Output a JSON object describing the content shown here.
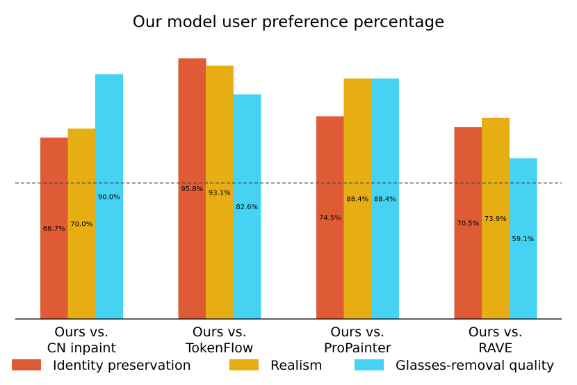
{
  "chart_data": {
    "type": "bar",
    "title": "Our model user preference percentage",
    "categories": [
      [
        "Ours vs.",
        "CN inpaint"
      ],
      [
        "Ours vs.",
        "TokenFlow"
      ],
      [
        "Ours vs.",
        "ProPainter"
      ],
      [
        "Ours vs.",
        "RAVE"
      ]
    ],
    "series": [
      {
        "name": "Identity preservation",
        "color": "#de5b35",
        "values": [
          66.7,
          95.8,
          74.5,
          70.5
        ],
        "labels": [
          "66.7%",
          "95.8%",
          "74.5%",
          "70.5%"
        ]
      },
      {
        "name": "Realism",
        "color": "#e6ae13",
        "values": [
          70.0,
          93.1,
          88.4,
          73.9
        ],
        "labels": [
          "70.0%",
          "93.1%",
          "88.4%",
          "73.9%"
        ]
      },
      {
        "name": "Glasses-removal quality",
        "color": "#45d2f3",
        "values": [
          90.0,
          82.6,
          88.4,
          59.1
        ],
        "labels": [
          "90.0%",
          "82.6%",
          "88.4%",
          "59.1%"
        ]
      }
    ],
    "reference_line": 50,
    "ylim": [
      0,
      100
    ],
    "xlabel": "",
    "ylabel": "",
    "grid": false,
    "legend": "bottom"
  }
}
